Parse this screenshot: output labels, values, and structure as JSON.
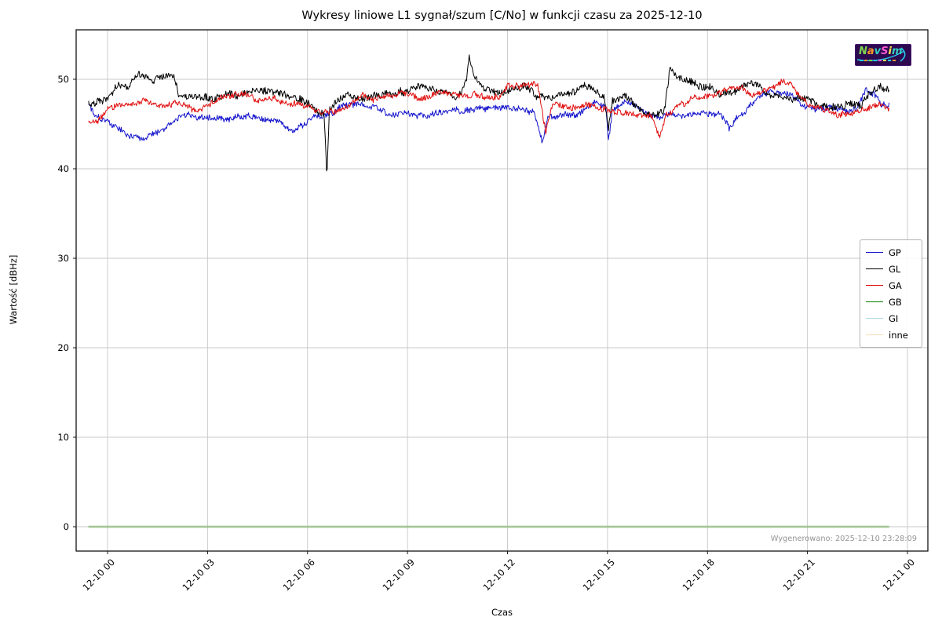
{
  "title": "Wykresy liniowe L1 sygnał/szum [C/No] w funkcji czasu za 2025-12-10",
  "generated_note": "Wygenerowano: 2025-12-10 23:28:09",
  "logo": {
    "text": "NavSim",
    "letter_colors": [
      "#7fd64f",
      "#ff9a2a",
      "#35d0c0",
      "#ff5ad5",
      "#ffe34d",
      "#35d0c0"
    ],
    "swoosh_color": "#25c8e8",
    "background": "#2d0a50"
  },
  "chart_data": {
    "type": "line",
    "title": "Wykresy liniowe L1 sygnał/szum [C/No] w funkcji czasu za 2025-12-10",
    "xlabel": "Czas",
    "ylabel": "Wartość [dBHz]",
    "grid": true,
    "legend_position": "right",
    "x_tick_labels": [
      "12-10 00",
      "12-10 03",
      "12-10 06",
      "12-10 09",
      "12-10 12",
      "12-10 15",
      "12-10 18",
      "12-10 21",
      "12-11 00"
    ],
    "y_ticks": [
      0,
      10,
      20,
      30,
      40,
      50
    ],
    "ylim": [
      -2.9,
      55.5
    ],
    "x_hours_range": [
      -0.57,
      23.45
    ],
    "series": [
      {
        "name": "GP",
        "color": "#1414cc",
        "noise": 0.32,
        "seed": 101,
        "width": 1.0,
        "keyframes": [
          [
            -0.57,
            47.2
          ],
          [
            -0.4,
            46.4
          ],
          [
            -0.2,
            46.0
          ],
          [
            0,
            45.7
          ],
          [
            0.3,
            44.8
          ],
          [
            0.6,
            44.2
          ],
          [
            0.9,
            43.7
          ],
          [
            1.2,
            43.9
          ],
          [
            1.5,
            44.2
          ],
          [
            1.8,
            45.0
          ],
          [
            2.1,
            45.8
          ],
          [
            2.4,
            46.2
          ],
          [
            2.7,
            46.1
          ],
          [
            3.0,
            46.2
          ],
          [
            3.3,
            45.9
          ],
          [
            3.6,
            45.8
          ],
          [
            3.9,
            46.2
          ],
          [
            4.2,
            46.3
          ],
          [
            4.5,
            46.1
          ],
          [
            4.8,
            45.9
          ],
          [
            5.1,
            45.6
          ],
          [
            5.4,
            44.9
          ],
          [
            5.6,
            44.5
          ],
          [
            5.9,
            45.1
          ],
          [
            6.2,
            46.2
          ],
          [
            6.5,
            46.2
          ],
          [
            6.8,
            46.4
          ],
          [
            7.1,
            46.7
          ],
          [
            7.4,
            47.0
          ],
          [
            7.7,
            46.8
          ],
          [
            8.0,
            46.5
          ],
          [
            8.3,
            46.1
          ],
          [
            8.6,
            46.0
          ],
          [
            8.9,
            46.3
          ],
          [
            9.2,
            45.8
          ],
          [
            9.5,
            45.6
          ],
          [
            9.8,
            45.9
          ],
          [
            10.1,
            46.1
          ],
          [
            10.4,
            46.5
          ],
          [
            10.7,
            46.4
          ],
          [
            11.0,
            46.6
          ],
          [
            11.3,
            46.3
          ],
          [
            11.6,
            46.4
          ],
          [
            11.9,
            46.5
          ],
          [
            12.2,
            46.4
          ],
          [
            12.5,
            46.6
          ],
          [
            12.8,
            46.5
          ],
          [
            13.05,
            43.1
          ],
          [
            13.2,
            45.9
          ],
          [
            13.5,
            46.2
          ],
          [
            13.8,
            46.3
          ],
          [
            14.1,
            46.4
          ],
          [
            14.4,
            47.2
          ],
          [
            14.7,
            47.4
          ],
          [
            14.95,
            46.8
          ],
          [
            15.03,
            42.9
          ],
          [
            15.15,
            46.4
          ],
          [
            15.45,
            47.1
          ],
          [
            15.7,
            47.3
          ],
          [
            16.0,
            46.3
          ],
          [
            16.3,
            45.5
          ],
          [
            16.6,
            45.4
          ],
          [
            16.9,
            45.6
          ],
          [
            17.2,
            45.8
          ],
          [
            17.5,
            46.0
          ],
          [
            17.8,
            46.2
          ],
          [
            18.1,
            46.4
          ],
          [
            18.4,
            46.5
          ],
          [
            18.65,
            44.9
          ],
          [
            18.9,
            46.1
          ],
          [
            19.2,
            47.0
          ],
          [
            19.5,
            48.2
          ],
          [
            19.8,
            48.8
          ],
          [
            20.1,
            48.7
          ],
          [
            20.4,
            48.4
          ],
          [
            20.7,
            47.4
          ],
          [
            21.0,
            46.6
          ],
          [
            21.3,
            46.3
          ],
          [
            21.6,
            46.4
          ],
          [
            21.9,
            46.5
          ],
          [
            22.2,
            45.9
          ],
          [
            22.5,
            46.5
          ],
          [
            22.75,
            48.4
          ],
          [
            23.0,
            47.9
          ],
          [
            23.2,
            46.9
          ],
          [
            23.45,
            46.8
          ]
        ]
      },
      {
        "name": "GL",
        "color": "#000000",
        "noise": 0.38,
        "seed": 202,
        "width": 1.0,
        "keyframes": [
          [
            -0.57,
            47.3
          ],
          [
            -0.3,
            47.8
          ],
          [
            0,
            48.0
          ],
          [
            0.3,
            49.2
          ],
          [
            0.6,
            49.5
          ],
          [
            0.9,
            50.6
          ],
          [
            1.1,
            50.2
          ],
          [
            1.3,
            49.6
          ],
          [
            1.5,
            49.9
          ],
          [
            1.8,
            50.4
          ],
          [
            2.0,
            50.2
          ],
          [
            2.15,
            48.2
          ],
          [
            2.4,
            48.1
          ],
          [
            2.7,
            48.4
          ],
          [
            3.0,
            48.1
          ],
          [
            3.3,
            48.0
          ],
          [
            3.6,
            48.3
          ],
          [
            3.9,
            47.8
          ],
          [
            4.2,
            48.3
          ],
          [
            4.5,
            48.6
          ],
          [
            4.8,
            48.2
          ],
          [
            5.1,
            48.4
          ],
          [
            5.4,
            48.0
          ],
          [
            5.7,
            47.8
          ],
          [
            6.0,
            47.4
          ],
          [
            6.3,
            46.6
          ],
          [
            6.5,
            46.4
          ],
          [
            6.58,
            39.2
          ],
          [
            6.66,
            46.8
          ],
          [
            6.9,
            47.9
          ],
          [
            7.2,
            48.4
          ],
          [
            7.5,
            48.1
          ],
          [
            7.8,
            48.3
          ],
          [
            8.1,
            48.6
          ],
          [
            8.4,
            48.4
          ],
          [
            8.7,
            48.7
          ],
          [
            9.0,
            48.4
          ],
          [
            9.3,
            48.9
          ],
          [
            9.6,
            48.8
          ],
          [
            9.9,
            48.4
          ],
          [
            10.2,
            48.5
          ],
          [
            10.5,
            48.3
          ],
          [
            10.75,
            50.0
          ],
          [
            10.85,
            52.6
          ],
          [
            11.0,
            50.6
          ],
          [
            11.15,
            49.9
          ],
          [
            11.3,
            49.0
          ],
          [
            11.6,
            48.5
          ],
          [
            11.9,
            48.7
          ],
          [
            12.2,
            49.0
          ],
          [
            12.5,
            49.2
          ],
          [
            12.8,
            48.6
          ],
          [
            13.1,
            48.3
          ],
          [
            13.4,
            48.4
          ],
          [
            13.7,
            48.6
          ],
          [
            14.0,
            48.8
          ],
          [
            14.3,
            49.4
          ],
          [
            14.6,
            49.2
          ],
          [
            14.9,
            48.2
          ],
          [
            15.03,
            44.9
          ],
          [
            15.15,
            48.0
          ],
          [
            15.5,
            48.6
          ],
          [
            15.8,
            47.5
          ],
          [
            16.1,
            46.6
          ],
          [
            16.4,
            46.5
          ],
          [
            16.7,
            46.6
          ],
          [
            16.88,
            51.9
          ],
          [
            17.0,
            51.0
          ],
          [
            17.2,
            50.3
          ],
          [
            17.5,
            49.9
          ],
          [
            17.8,
            49.6
          ],
          [
            18.1,
            49.4
          ],
          [
            18.4,
            48.7
          ],
          [
            18.7,
            48.9
          ],
          [
            19.0,
            49.3
          ],
          [
            19.3,
            49.6
          ],
          [
            19.6,
            49.4
          ],
          [
            19.9,
            48.6
          ],
          [
            20.2,
            48.3
          ],
          [
            20.5,
            48.1
          ],
          [
            20.8,
            48.4
          ],
          [
            21.1,
            48.0
          ],
          [
            21.4,
            47.5
          ],
          [
            21.7,
            47.2
          ],
          [
            22.0,
            47.3
          ],
          [
            22.3,
            47.6
          ],
          [
            22.6,
            47.4
          ],
          [
            22.9,
            48.9
          ],
          [
            23.2,
            49.1
          ],
          [
            23.45,
            48.9
          ]
        ]
      },
      {
        "name": "GA",
        "color": "#e00e0e",
        "noise": 0.3,
        "seed": 303,
        "width": 1.0,
        "keyframes": [
          [
            -0.57,
            45.1
          ],
          [
            -0.35,
            45.4
          ],
          [
            -0.1,
            46.3
          ],
          [
            0.2,
            46.9
          ],
          [
            0.5,
            47.0
          ],
          [
            0.8,
            47.2
          ],
          [
            1.1,
            47.3
          ],
          [
            1.4,
            46.7
          ],
          [
            1.7,
            46.9
          ],
          [
            2.0,
            47.4
          ],
          [
            2.3,
            47.1
          ],
          [
            2.6,
            46.9
          ],
          [
            2.9,
            47.2
          ],
          [
            3.2,
            47.5
          ],
          [
            3.5,
            47.7
          ],
          [
            3.8,
            47.9
          ],
          [
            4.1,
            48.0
          ],
          [
            4.4,
            47.6
          ],
          [
            4.7,
            47.4
          ],
          [
            5.0,
            47.5
          ],
          [
            5.3,
            47.3
          ],
          [
            5.6,
            47.2
          ],
          [
            5.9,
            46.9
          ],
          [
            6.2,
            46.5
          ],
          [
            6.5,
            46.3
          ],
          [
            6.8,
            46.4
          ],
          [
            7.1,
            46.6
          ],
          [
            7.4,
            47.6
          ],
          [
            7.6,
            48.4
          ],
          [
            7.9,
            48.1
          ],
          [
            8.2,
            48.2
          ],
          [
            8.5,
            48.4
          ],
          [
            8.8,
            48.5
          ],
          [
            9.1,
            48.4
          ],
          [
            9.4,
            48.2
          ],
          [
            9.7,
            48.4
          ],
          [
            10.0,
            48.5
          ],
          [
            10.3,
            48.3
          ],
          [
            10.6,
            48.4
          ],
          [
            10.9,
            48.5
          ],
          [
            11.2,
            48.4
          ],
          [
            11.5,
            48.3
          ],
          [
            11.8,
            48.5
          ],
          [
            12.05,
            49.6
          ],
          [
            12.3,
            49.4
          ],
          [
            12.6,
            49.5
          ],
          [
            12.9,
            49.2
          ],
          [
            13.15,
            43.7
          ],
          [
            13.35,
            47.4
          ],
          [
            13.6,
            47.3
          ],
          [
            13.9,
            47.2
          ],
          [
            14.2,
            47.4
          ],
          [
            14.5,
            47.5
          ],
          [
            14.8,
            47.1
          ],
          [
            15.1,
            46.7
          ],
          [
            15.4,
            46.5
          ],
          [
            15.7,
            46.4
          ],
          [
            16.0,
            46.3
          ],
          [
            16.3,
            46.2
          ],
          [
            16.58,
            43.6
          ],
          [
            16.75,
            46.4
          ],
          [
            17.0,
            47.0
          ],
          [
            17.3,
            47.4
          ],
          [
            17.6,
            48.4
          ],
          [
            17.9,
            48.3
          ],
          [
            18.2,
            48.5
          ],
          [
            18.5,
            49.2
          ],
          [
            18.8,
            49.4
          ],
          [
            19.05,
            49.5
          ],
          [
            19.3,
            48.6
          ],
          [
            19.6,
            48.8
          ],
          [
            19.9,
            49.0
          ],
          [
            20.2,
            49.7
          ],
          [
            20.45,
            49.9
          ],
          [
            20.7,
            48.6
          ],
          [
            21.0,
            47.6
          ],
          [
            21.3,
            47.1
          ],
          [
            21.6,
            46.9
          ],
          [
            21.9,
            46.4
          ],
          [
            22.2,
            46.3
          ],
          [
            22.5,
            46.6
          ],
          [
            22.8,
            47.1
          ],
          [
            23.1,
            47.5
          ],
          [
            23.45,
            47.0
          ]
        ]
      },
      {
        "name": "GB",
        "color": "#008000",
        "noise": 0,
        "seed": 4,
        "width": 2.2,
        "keyframes": [
          [
            -0.57,
            0
          ],
          [
            23.45,
            0
          ]
        ]
      },
      {
        "name": "GI",
        "color": "#add8e6",
        "noise": 0,
        "seed": 5,
        "width": 1.6,
        "keyframes": [
          [
            -0.57,
            0
          ],
          [
            23.45,
            0
          ]
        ]
      },
      {
        "name": "inne",
        "color": "#f5deb3",
        "noise": 0,
        "seed": 6,
        "width": 1.0,
        "keyframes": [
          [
            -0.57,
            0
          ],
          [
            23.45,
            0
          ]
        ]
      }
    ]
  }
}
